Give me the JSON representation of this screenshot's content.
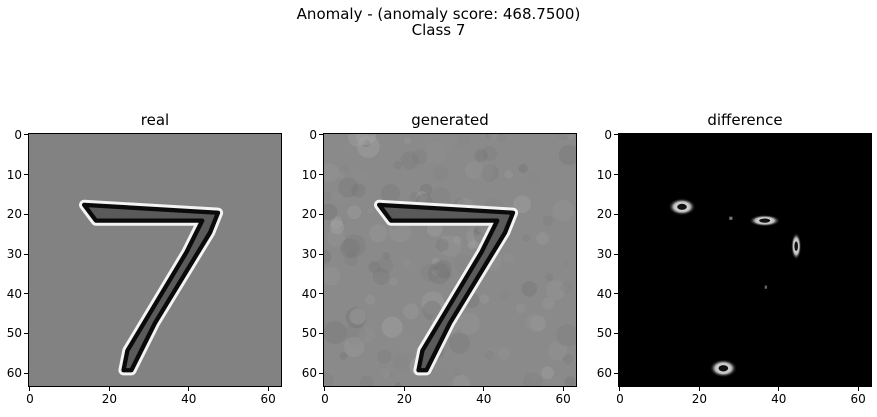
{
  "figure": {
    "suptitle_line1": "Anomaly - (anomaly score: 468.7500)",
    "suptitle_line2": "Class 7"
  },
  "chart_data": [
    {
      "type": "heatmap",
      "title": "real",
      "colormap": "gray",
      "image_size": [
        64,
        64
      ],
      "xticks": [
        "0",
        "20",
        "40",
        "60"
      ],
      "yticks": [
        "0",
        "10",
        "20",
        "30",
        "40",
        "50",
        "60"
      ],
      "xlim": [
        -0.5,
        63.5
      ],
      "ylim": [
        63.5,
        -0.5
      ],
      "background": "#828282",
      "content": "handwritten digit 7, edge-enhanced stroke"
    },
    {
      "type": "heatmap",
      "title": "generated",
      "colormap": "gray",
      "image_size": [
        64,
        64
      ],
      "xticks": [
        "0",
        "20",
        "40",
        "60"
      ],
      "yticks": [
        "0",
        "10",
        "20",
        "30",
        "40",
        "50",
        "60"
      ],
      "xlim": [
        -0.5,
        63.5
      ],
      "ylim": [
        63.5,
        -0.5
      ],
      "background": "#8a8a8a",
      "content": "reconstructed digit 7 with noisy texture"
    },
    {
      "type": "heatmap",
      "title": "difference",
      "colormap": "gray",
      "image_size": [
        64,
        64
      ],
      "xticks": [
        "0",
        "20",
        "40",
        "60"
      ],
      "yticks": [
        "0",
        "10",
        "20",
        "30",
        "40",
        "50",
        "60"
      ],
      "xlim": [
        -0.5,
        63.5
      ],
      "ylim": [
        63.5,
        -0.5
      ],
      "background": "#000000",
      "blobs": [
        {
          "x": 16,
          "y": 18.5,
          "rx": 3.5,
          "ry": 2.2
        },
        {
          "x": 37,
          "y": 22,
          "rx": 4,
          "ry": 1.5
        },
        {
          "x": 45,
          "y": 28.5,
          "rx": 1.3,
          "ry": 3.5
        },
        {
          "x": 26.5,
          "y": 59.5,
          "rx": 3.5,
          "ry": 2.3
        }
      ]
    }
  ]
}
